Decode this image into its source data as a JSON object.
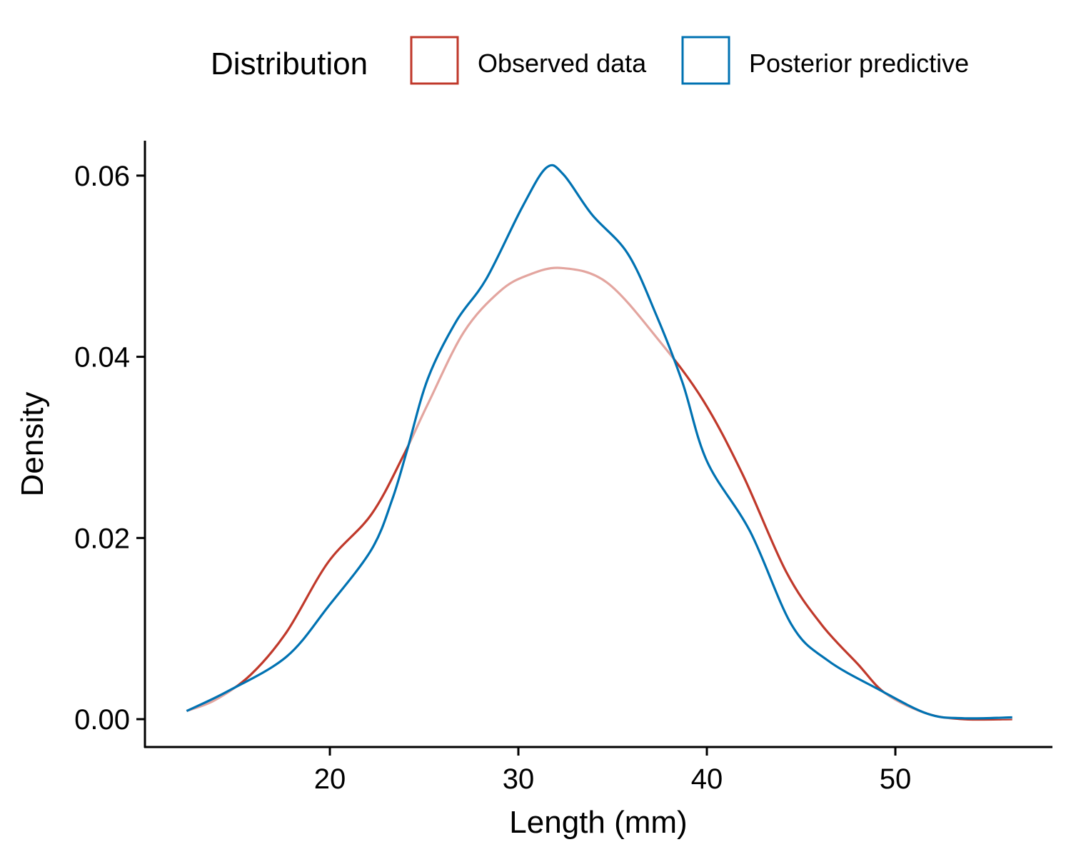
{
  "chart_data": {
    "type": "line",
    "subtype": "density",
    "title": "",
    "xlabel": "Length (mm)",
    "ylabel": "Density",
    "xlim": [
      10.5,
      57.5
    ],
    "ylim": [
      -0.0025,
      0.0635
    ],
    "xticks": [
      20,
      30,
      40,
      50
    ],
    "xtick_labels": [
      "20",
      "30",
      "40",
      "50"
    ],
    "yticks": [
      0.0,
      0.02,
      0.04,
      0.06
    ],
    "ytick_labels": [
      "0.00",
      "0.02",
      "0.04",
      "0.06"
    ],
    "grid": false,
    "legend": {
      "title": "Distribution",
      "placement": "top",
      "entries": [
        {
          "label": "Observed data",
          "color": "#C0392B"
        },
        {
          "label": "Posterior predictive",
          "color": "#0072B2"
        }
      ]
    },
    "series": [
      {
        "name": "Observed data",
        "color": "#C0392B",
        "x": [
          12.4,
          13.9,
          15.8,
          17.7,
          19.9,
          22.2,
          23.9,
          25.2,
          27.1,
          29.0,
          30.5,
          32.3,
          34.7,
          37.5,
          39.8,
          41.9,
          44.2,
          46.1,
          48.0,
          49.5,
          51.7,
          53.6,
          56.2
        ],
        "y": [
          0.0009,
          0.0021,
          0.0049,
          0.0096,
          0.0173,
          0.0226,
          0.0291,
          0.0348,
          0.0427,
          0.0472,
          0.049,
          0.0498,
          0.0482,
          0.0417,
          0.0352,
          0.027,
          0.0163,
          0.0104,
          0.0061,
          0.0028,
          0.0006,
          0.0,
          0.0
        ]
      },
      {
        "name": "Posterior predictive",
        "color": "#0072B2",
        "x": [
          12.4,
          14.6,
          17.7,
          19.9,
          22.2,
          23.3,
          24.1,
          25.2,
          26.7,
          28.3,
          30.2,
          31.5,
          32.4,
          33.9,
          35.8,
          37.3,
          38.7,
          40.0,
          42.3,
          44.5,
          46.4,
          49.1,
          51.7,
          53.6,
          56.2
        ],
        "y": [
          0.0009,
          0.0031,
          0.0069,
          0.0124,
          0.0187,
          0.0242,
          0.0297,
          0.0376,
          0.0439,
          0.0486,
          0.0565,
          0.0609,
          0.0601,
          0.0557,
          0.0514,
          0.0447,
          0.0372,
          0.0285,
          0.0207,
          0.0104,
          0.0065,
          0.0033,
          0.0006,
          0.0001,
          0.0002
        ]
      }
    ]
  }
}
